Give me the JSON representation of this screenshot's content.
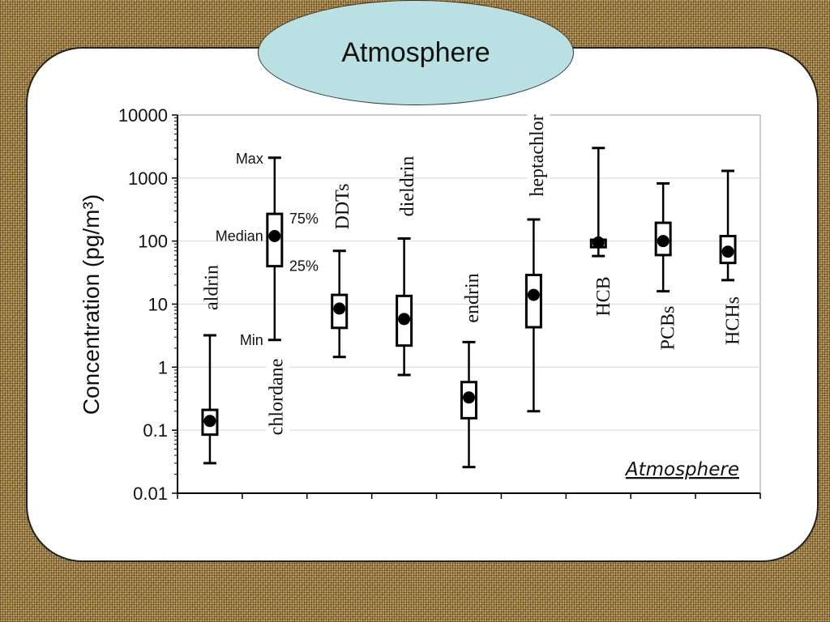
{
  "slide_title": "Atmosphere",
  "chart_data": {
    "type": "boxplot",
    "ylabel": "Concentration  (pg/m³)",
    "yscale": "log",
    "ylim": [
      0.01,
      10000
    ],
    "yticks": [
      "0.01",
      "0.1",
      "1",
      "10",
      "100",
      "1000",
      "10000"
    ],
    "grid": true,
    "annotation": "Atmosphere",
    "legend_labels": {
      "max": "Max",
      "p75": "75%",
      "median": "Median",
      "p25": "25%",
      "min": "Min"
    },
    "categories": [
      "aldrin",
      "chlordane",
      "DDTs",
      "dieldrin",
      "endrin",
      "heptachlor",
      "HCB",
      "PCBs",
      "HCHs"
    ],
    "boxes": [
      {
        "name": "aldrin",
        "min": 0.03,
        "q1": 0.085,
        "median": 0.14,
        "q3": 0.21,
        "max": 3.2
      },
      {
        "name": "chlordane",
        "min": 2.7,
        "q1": 40,
        "median": 120,
        "q3": 270,
        "max": 2100
      },
      {
        "name": "DDTs",
        "min": 1.45,
        "q1": 4.2,
        "median": 8.5,
        "q3": 14,
        "max": 70
      },
      {
        "name": "dieldrin",
        "min": 0.75,
        "q1": 2.2,
        "median": 5.8,
        "q3": 13.5,
        "max": 110
      },
      {
        "name": "endrin",
        "min": 0.026,
        "q1": 0.155,
        "median": 0.33,
        "q3": 0.58,
        "max": 2.5
      },
      {
        "name": "heptachlor",
        "min": 0.2,
        "q1": 4.3,
        "median": 14,
        "q3": 29,
        "max": 220
      },
      {
        "name": "HCB",
        "min": 58,
        "q1": 80,
        "median": 95,
        "q3": 105,
        "max": 3000
      },
      {
        "name": "PCBs",
        "min": 16,
        "q1": 60,
        "median": 100,
        "q3": 195,
        "max": 820
      },
      {
        "name": "HCHs",
        "min": 24,
        "q1": 45,
        "median": 68,
        "q3": 120,
        "max": 1300
      }
    ],
    "colors": {
      "box": "#000000",
      "fill": "#ffffff",
      "grid": "#d8d8d8",
      "title_oval": "#b9e0e3"
    }
  }
}
